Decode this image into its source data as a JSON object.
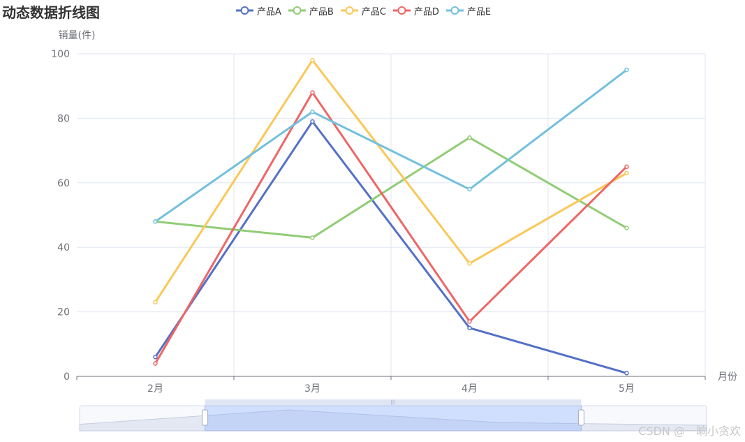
{
  "chart_data": {
    "type": "line",
    "title": "动态数据折线图",
    "xlabel": "月份",
    "ylabel": "销量(件)",
    "categories": [
      "2月",
      "3月",
      "4月",
      "5月"
    ],
    "ylim": [
      0,
      100
    ],
    "y_ticks": [
      0,
      20,
      40,
      60,
      80,
      100
    ],
    "grid": true,
    "legend_position": "top-center",
    "series": [
      {
        "name": "产品A",
        "color": "#5470c6",
        "values": [
          6,
          79,
          15,
          1
        ]
      },
      {
        "name": "产品B",
        "color": "#91cc75",
        "values": [
          48,
          43,
          74,
          46
        ]
      },
      {
        "name": "产品C",
        "color": "#fac858",
        "values": [
          23,
          98,
          35,
          63
        ]
      },
      {
        "name": "产品D",
        "color": "#ee6666",
        "values": [
          4,
          88,
          17,
          65
        ]
      },
      {
        "name": "产品E",
        "color": "#73c0de",
        "values": [
          48,
          82,
          58,
          95
        ]
      }
    ],
    "data_zoom": {
      "start_fraction": 0.2,
      "end_fraction": 0.8
    }
  },
  "watermark": "CSDN @一晌小贪欢"
}
